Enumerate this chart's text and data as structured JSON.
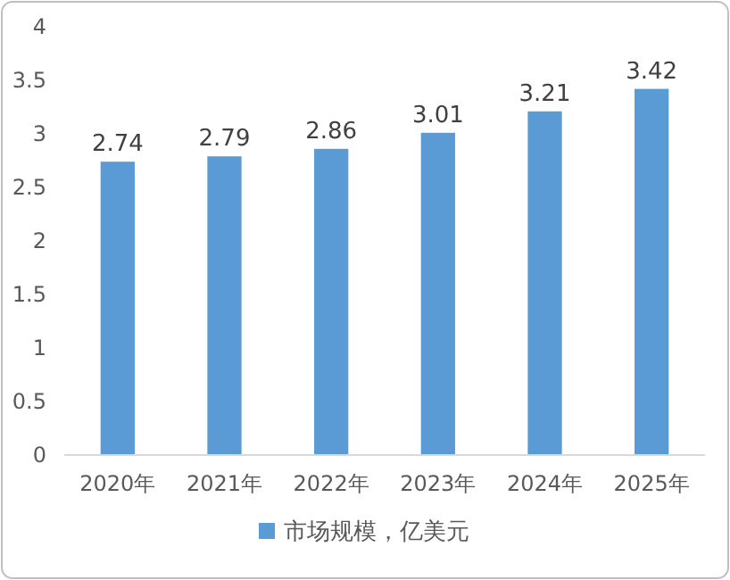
{
  "chart_data": {
    "type": "bar",
    "categories": [
      "2020年",
      "2021年",
      "2022年",
      "2023年",
      "2024年",
      "2025年"
    ],
    "series": [
      {
        "name": "市场规模，亿美元",
        "color": "#5b9bd5",
        "values": [
          2.74,
          2.79,
          2.86,
          3.01,
          3.21,
          3.42
        ]
      }
    ],
    "ylim": [
      0,
      4
    ],
    "yticks": [
      0,
      0.5,
      1,
      1.5,
      2,
      2.5,
      3,
      3.5,
      4
    ],
    "data_labels": true,
    "legend": "bottom"
  }
}
